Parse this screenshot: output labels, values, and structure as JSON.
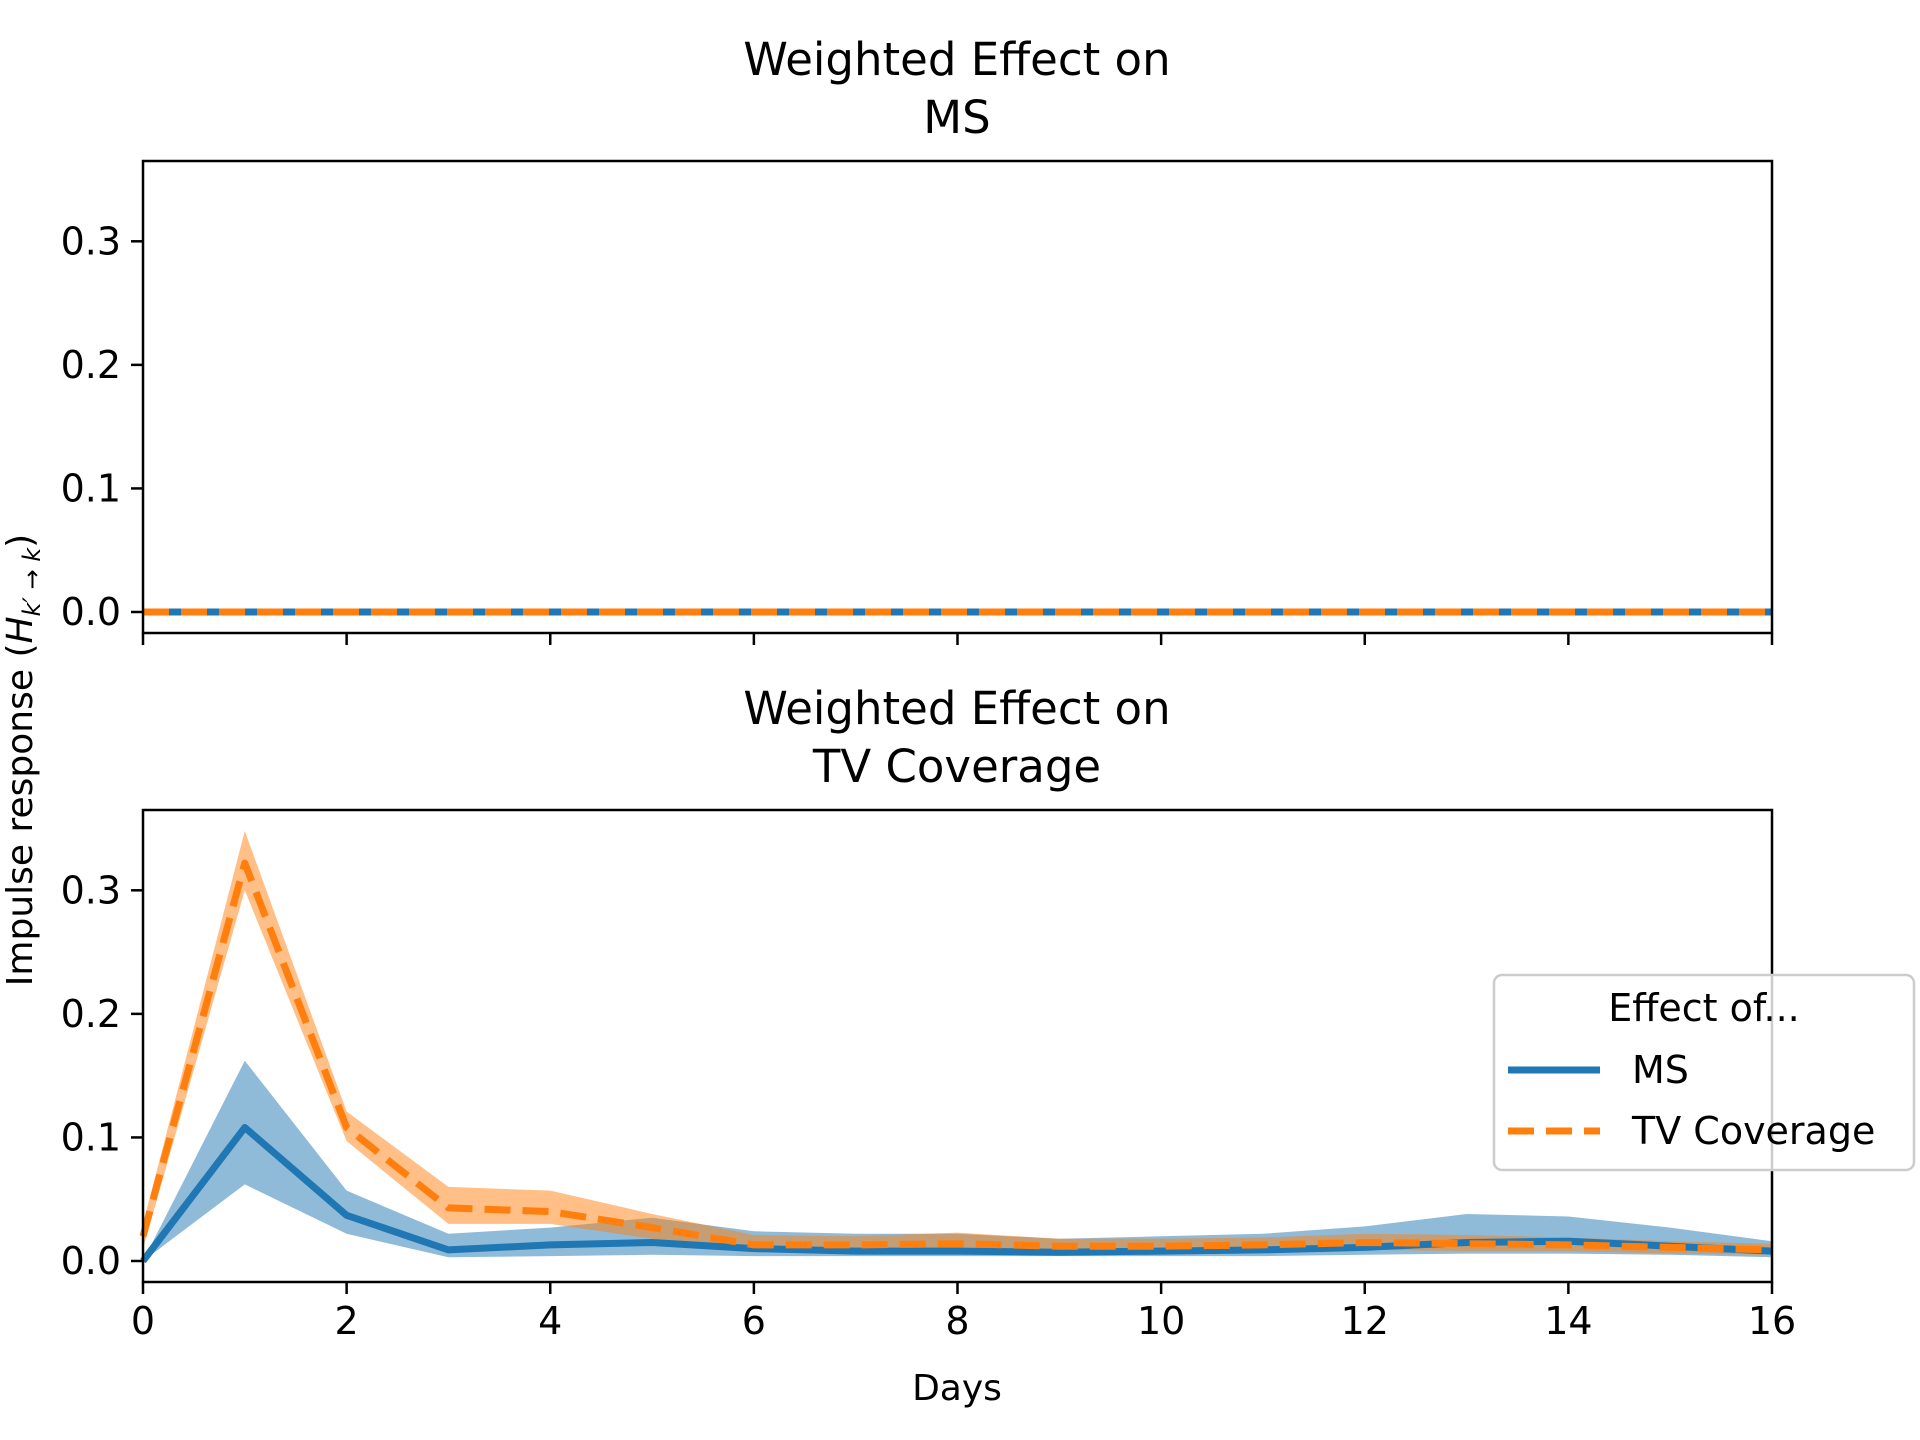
{
  "chart_data": [
    {
      "type": "line",
      "title_line1": "Weighted Effect on",
      "title_line2": "MS",
      "xlabel": "",
      "ylabel": "Impulse response (H_{k' → k})",
      "xlim": [
        0,
        16
      ],
      "ylim": [
        -0.017,
        0.365
      ],
      "xticks": [
        0,
        2,
        4,
        6,
        8,
        10,
        12,
        14,
        16
      ],
      "xtick_labels_visible": false,
      "yticks": [
        0.0,
        0.1,
        0.2,
        0.3
      ],
      "ytick_labels": [
        "0.0",
        "0.1",
        "0.2",
        "0.3"
      ],
      "x": [
        0,
        1,
        2,
        3,
        4,
        5,
        6,
        7,
        8,
        9,
        10,
        11,
        12,
        13,
        14,
        15,
        16
      ],
      "series": [
        {
          "name": "MS",
          "color": "#1f77b4",
          "style": "solid",
          "values": [
            0,
            0,
            0,
            0,
            0,
            0,
            0,
            0,
            0,
            0,
            0,
            0,
            0,
            0,
            0,
            0,
            0
          ],
          "lower": [
            0,
            0,
            0,
            0,
            0,
            0,
            0,
            0,
            0,
            0,
            0,
            0,
            0,
            0,
            0,
            0,
            0
          ],
          "upper": [
            0,
            0,
            0,
            0,
            0,
            0,
            0,
            0,
            0,
            0,
            0,
            0,
            0,
            0,
            0,
            0,
            0
          ]
        },
        {
          "name": "TV Coverage",
          "color": "#ff7f0e",
          "style": "dashed",
          "values": [
            0,
            0,
            0,
            0,
            0,
            0,
            0,
            0,
            0,
            0,
            0,
            0,
            0,
            0,
            0,
            0,
            0
          ],
          "lower": [
            0,
            0,
            0,
            0,
            0,
            0,
            0,
            0,
            0,
            0,
            0,
            0,
            0,
            0,
            0,
            0,
            0
          ],
          "upper": [
            0,
            0,
            0,
            0,
            0,
            0,
            0,
            0,
            0,
            0,
            0,
            0,
            0,
            0,
            0,
            0,
            0
          ]
        }
      ]
    },
    {
      "type": "line",
      "title_line1": "Weighted Effect on",
      "title_line2": "TV Coverage",
      "xlabel": "Days",
      "ylabel": "",
      "xlim": [
        0,
        16
      ],
      "ylim": [
        -0.017,
        0.365
      ],
      "xticks": [
        0,
        2,
        4,
        6,
        8,
        10,
        12,
        14,
        16
      ],
      "xtick_labels": [
        "0",
        "2",
        "4",
        "6",
        "8",
        "10",
        "12",
        "14",
        "16"
      ],
      "xtick_labels_visible": true,
      "yticks": [
        0.0,
        0.1,
        0.2,
        0.3
      ],
      "ytick_labels": [
        "0.0",
        "0.1",
        "0.2",
        "0.3"
      ],
      "x": [
        0,
        1,
        2,
        3,
        4,
        5,
        6,
        7,
        8,
        9,
        10,
        11,
        12,
        13,
        14,
        15,
        16
      ],
      "series": [
        {
          "name": "MS",
          "color": "#1f77b4",
          "style": "solid",
          "values": [
            0,
            0.108,
            0.037,
            0.009,
            0.013,
            0.015,
            0.01,
            0.008,
            0.008,
            0.007,
            0.008,
            0.009,
            0.011,
            0.015,
            0.016,
            0.012,
            0.008
          ],
          "lower": [
            0,
            0.062,
            0.022,
            0.003,
            0.004,
            0.005,
            0.004,
            0.004,
            0.004,
            0.004,
            0.004,
            0.004,
            0.005,
            0.006,
            0.006,
            0.005,
            0.003
          ],
          "upper": [
            0,
            0.162,
            0.057,
            0.022,
            0.027,
            0.035,
            0.024,
            0.022,
            0.022,
            0.018,
            0.02,
            0.022,
            0.028,
            0.038,
            0.036,
            0.027,
            0.016
          ]
        },
        {
          "name": "TV Coverage",
          "color": "#ff7f0e",
          "style": "dashed",
          "values": [
            0.02,
            0.322,
            0.108,
            0.043,
            0.04,
            0.027,
            0.013,
            0.013,
            0.014,
            0.012,
            0.012,
            0.013,
            0.015,
            0.014,
            0.013,
            0.011,
            0.009
          ],
          "lower": [
            0.01,
            0.3,
            0.097,
            0.03,
            0.03,
            0.018,
            0.008,
            0.008,
            0.008,
            0.007,
            0.007,
            0.008,
            0.009,
            0.008,
            0.008,
            0.006,
            0.005
          ],
          "upper": [
            0.03,
            0.348,
            0.121,
            0.06,
            0.057,
            0.038,
            0.021,
            0.02,
            0.023,
            0.018,
            0.018,
            0.019,
            0.022,
            0.021,
            0.019,
            0.016,
            0.014
          ]
        }
      ],
      "legend": {
        "title": "Effect of...",
        "placement": "center-right",
        "entries": [
          {
            "label": "MS",
            "color": "#1f77b4",
            "style": "solid"
          },
          {
            "label": "TV Coverage",
            "color": "#ff7f0e",
            "style": "dashed"
          }
        ]
      }
    }
  ],
  "shared_ylabel_main": "Impulse response (",
  "shared_ylabel_H": "H",
  "shared_ylabel_sub": "k′ → k",
  "shared_ylabel_end": ")"
}
